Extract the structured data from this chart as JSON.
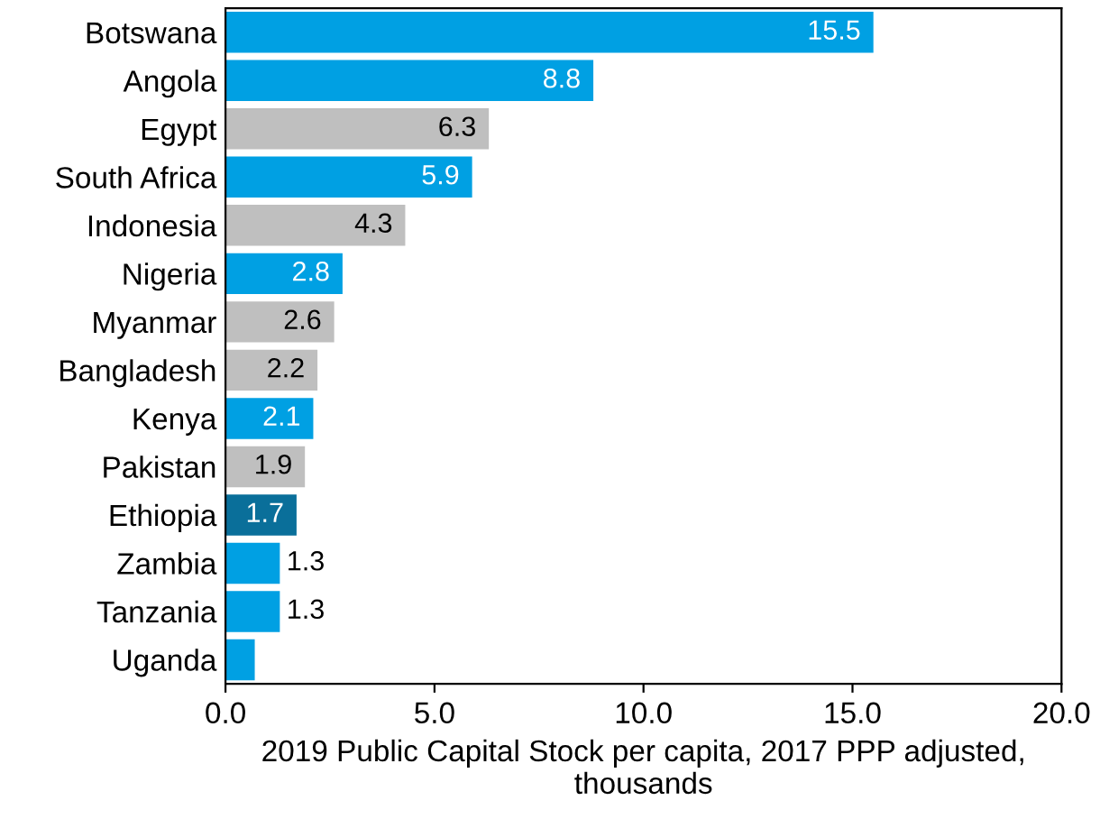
{
  "chart_data": {
    "type": "bar",
    "orientation": "horizontal",
    "categories": [
      "Botswana",
      "Angola",
      "Egypt",
      "South Africa",
      "Indonesia",
      "Nigeria",
      "Myanmar",
      "Bangladesh",
      "Kenya",
      "Pakistan",
      "Ethiopia",
      "Zambia",
      "Tanzania",
      "Uganda"
    ],
    "values": [
      15.5,
      8.8,
      6.3,
      5.9,
      4.3,
      2.8,
      2.6,
      2.2,
      2.1,
      1.9,
      1.7,
      1.3,
      1.3,
      0.7
    ],
    "value_labels": [
      "15.5",
      "8.8",
      "6.3",
      "5.9",
      "4.3",
      "2.8",
      "2.6",
      "2.2",
      "2.1",
      "1.9",
      "1.7",
      "1.3",
      "1.3",
      null
    ],
    "colors": [
      "#00a0e3",
      "#00a0e3",
      "#bfbfbf",
      "#00a0e3",
      "#bfbfbf",
      "#00a0e3",
      "#bfbfbf",
      "#bfbfbf",
      "#00a0e3",
      "#bfbfbf",
      "#0a6f9a",
      "#00a0e3",
      "#00a0e3",
      "#00a0e3"
    ],
    "xlabel": "2019 Public Capital Stock per capita, 2017 PPP adjusted, thousands",
    "xlim": [
      0,
      20
    ],
    "xticks": [
      {
        "value": 0,
        "label": "0.0"
      },
      {
        "value": 5,
        "label": "5.0"
      },
      {
        "value": 10,
        "label": "10.0"
      },
      {
        "value": 15,
        "label": "15.0"
      },
      {
        "value": 20,
        "label": "20.0"
      }
    ],
    "grid": false,
    "legend": false
  }
}
